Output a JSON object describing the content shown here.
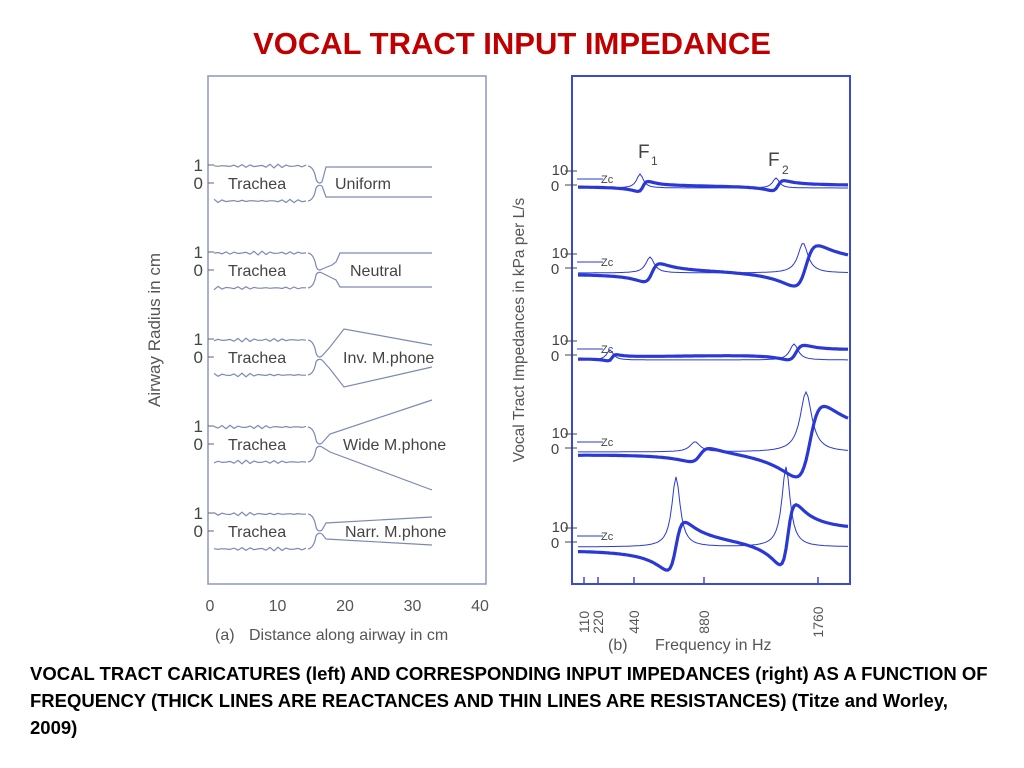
{
  "page": {
    "title": "VOCAL TRACT INPUT IMPEDANCE",
    "caption": "VOCAL TRACT CARICATURES (left) AND CORRESPONDING INPUT IMPEDANCES (right) AS A FUNCTION OF FREQUENCY  (THICK LINES ARE REACTANCES AND THIN LINES ARE RESISTANCES) (Titze and Worley, 2009)",
    "title_color": "#c00000"
  },
  "chart_data": [
    {
      "type": "line",
      "panel": "(a)",
      "xlabel": "Distance along airway in cm",
      "ylabel": "Airway Radius in cm",
      "xlim": [
        0,
        40
      ],
      "x_ticks": [
        "0",
        "10",
        "20",
        "30",
        "40"
      ],
      "tube_tick_labels": [
        "1",
        "0"
      ],
      "tubes": [
        {
          "trachea_label": "Trachea",
          "tract_label": "Uniform"
        },
        {
          "trachea_label": "Trachea",
          "tract_label": "Neutral"
        },
        {
          "trachea_label": "Trachea",
          "tract_label": "Inv. M.phone"
        },
        {
          "trachea_label": "Trachea",
          "tract_label": "Wide M.phone"
        },
        {
          "trachea_label": "Trachea",
          "tract_label": "Narr. M.phone"
        }
      ],
      "line_color": "#7d89b5"
    },
    {
      "type": "line",
      "panel": "(b)",
      "xlabel": "Frequency in Hz",
      "ylabel": "Vocal Tract Impedances in kPa per L/s",
      "x_ticks": [
        "110",
        "220",
        "440",
        "880",
        "1760"
      ],
      "formant_labels": [
        {
          "label": "F",
          "sub": "1"
        },
        {
          "label": "F",
          "sub": "2"
        }
      ],
      "row_tick_labels": [
        "10",
        "0"
      ],
      "zc_label": "Zc",
      "line_color": "#2a39d6",
      "legend": [
        "THICK LINES ARE REACTANCES",
        "THIN LINES ARE RESISTANCES"
      ]
    }
  ]
}
